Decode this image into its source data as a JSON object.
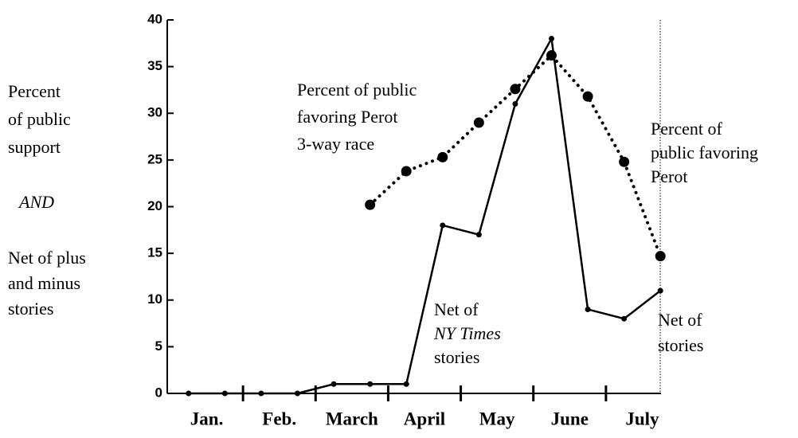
{
  "chart_data": {
    "type": "line",
    "y_label_lines": [
      "Percent",
      "of public",
      "support",
      "AND",
      "Net of plus",
      "and minus",
      "stories"
    ],
    "categories": [
      "Jan.",
      "Feb.",
      "March",
      "April",
      "May",
      "June",
      "July"
    ],
    "x": [
      0.25,
      0.75,
      1.25,
      1.75,
      2.25,
      2.75,
      3.25,
      3.75,
      4.25,
      4.75,
      5.25,
      5.75,
      6.25,
      6.75
    ],
    "xlim": [
      0,
      7
    ],
    "ylim": [
      0,
      40
    ],
    "yticks": [
      0,
      5,
      10,
      15,
      20,
      25,
      30,
      35,
      40
    ],
    "series": [
      {
        "name": "Net of NY Times stories",
        "color": "#000000",
        "style": "solid",
        "values": [
          0,
          0,
          0,
          0,
          1,
          1,
          1,
          18,
          17,
          31,
          38,
          9,
          8,
          11
        ]
      },
      {
        "name": "Percent of public favoring Perot",
        "color": "#000000",
        "style": "dotted",
        "values": [
          null,
          null,
          null,
          null,
          null,
          20.2,
          23.8,
          25.3,
          29,
          32.6,
          36.2,
          31.8,
          24.8,
          14.7
        ]
      }
    ],
    "annotations": [
      {
        "lines": [
          "Percent of public",
          "favoring Perot",
          "3-way race"
        ]
      },
      {
        "lines": [
          "Percent of",
          "public favoring",
          "Perot"
        ]
      },
      {
        "lines": [
          "Net of",
          "NY Times",
          "stories"
        ]
      },
      {
        "lines": [
          "Net of",
          "stories"
        ]
      }
    ]
  }
}
